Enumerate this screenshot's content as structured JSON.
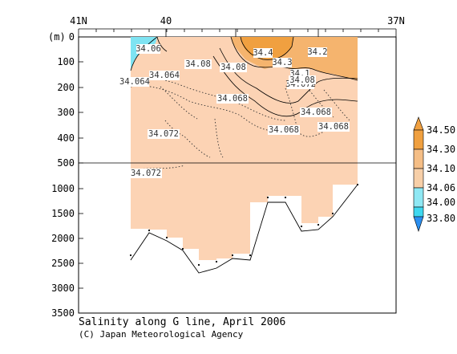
{
  "chart_data": {
    "type": "contour-section",
    "title": "Salinity along G line, April 2006",
    "credit": "(C) Japan Meteorological Agency",
    "ylabel": "(m)",
    "x_top_ticks": [
      "41N",
      "40",
      "37N"
    ],
    "y_upper_ticks": [
      0,
      100,
      200,
      300,
      400,
      500
    ],
    "y_lower_ticks": [
      1000,
      1500,
      2000,
      2500,
      3000,
      3500
    ],
    "contour_labels": [
      "34.06",
      "34.4",
      "34.2",
      "34.3",
      "34.08",
      "34.08",
      "34.1",
      "34.072",
      "34.08",
      "34.064",
      "34.064",
      "34.068",
      "34.068",
      "34.068",
      "34.068",
      "34.072",
      "34.072"
    ],
    "legend": {
      "levels": [
        "34.50",
        "34.30",
        "34.10",
        "34.06",
        "34.00",
        "33.80"
      ],
      "colors": [
        "#f0a040",
        "#f5be86",
        "#f7cfa8",
        "#8fe8f4",
        "#3fd8f0",
        "#2b8ff0"
      ]
    },
    "colors": {
      "fill_main": "#fcd3b4",
      "fill_high": "#f5b46e",
      "fill_top": "#f0a040",
      "fill_low": "#7ee3f2"
    }
  }
}
